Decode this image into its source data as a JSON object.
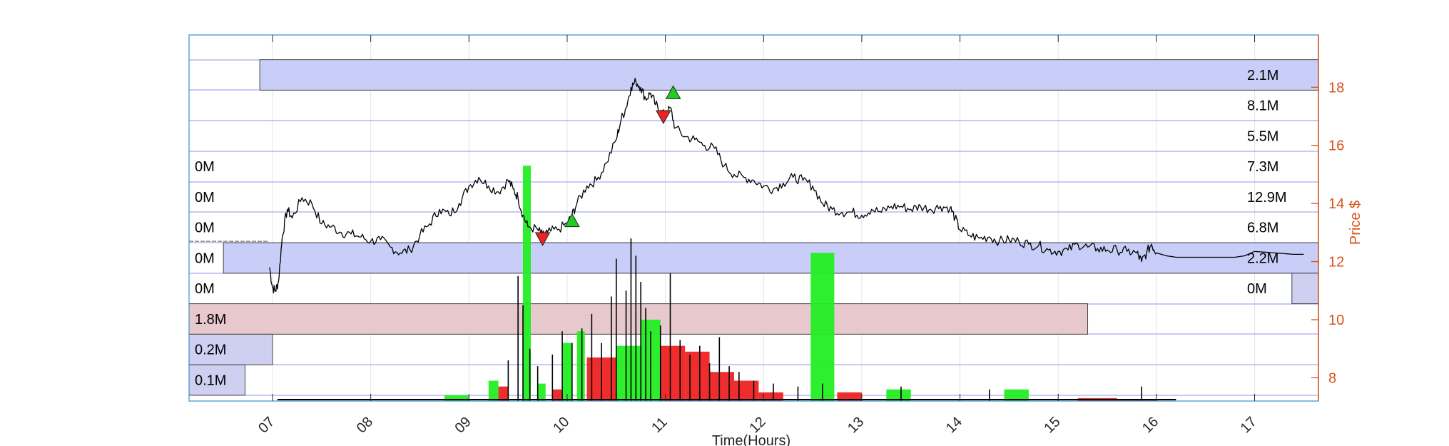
{
  "chart_data": {
    "type": "line",
    "title": "",
    "xlabel": "Time(Hours)",
    "ylabel": "Price $",
    "x_ticks": [
      "07",
      "08",
      "09",
      "10",
      "11",
      "12",
      "13",
      "14",
      "15",
      "16",
      "17"
    ],
    "x_range": [
      6.15,
      17.65
    ],
    "y_ticks": [
      8,
      10,
      12,
      14,
      16,
      18
    ],
    "ylim": [
      7.2,
      19.8
    ],
    "grid": true,
    "colors": {
      "price_line": "#000000",
      "price_axis": "#d95319",
      "profile_blue": "#c8cef8",
      "profile_value_area": "#e6c8cd",
      "profile_small": "#cfcff2",
      "up_volume": "#22ee22",
      "down_volume": "#ee2222",
      "grid_blue": "#8f96f0",
      "buy_marker": "#22cc22",
      "sell_marker": "#ee2222"
    },
    "price_series": [
      [
        6.97,
        11.8
      ],
      [
        7.0,
        11.1
      ],
      [
        7.03,
        11.0
      ],
      [
        7.06,
        11.3
      ],
      [
        7.1,
        12.9
      ],
      [
        7.15,
        13.8
      ],
      [
        7.2,
        13.5
      ],
      [
        7.3,
        14.2
      ],
      [
        7.4,
        14.0
      ],
      [
        7.5,
        13.3
      ],
      [
        7.6,
        13.2
      ],
      [
        7.7,
        13.0
      ],
      [
        7.8,
        12.95
      ],
      [
        7.9,
        12.85
      ],
      [
        8.0,
        12.7
      ],
      [
        8.1,
        12.75
      ],
      [
        8.2,
        12.5
      ],
      [
        8.3,
        12.3
      ],
      [
        8.4,
        12.4
      ],
      [
        8.5,
        12.9
      ],
      [
        8.6,
        13.3
      ],
      [
        8.7,
        13.8
      ],
      [
        8.8,
        13.6
      ],
      [
        8.9,
        14.0
      ],
      [
        9.0,
        14.6
      ],
      [
        9.1,
        14.9
      ],
      [
        9.2,
        14.6
      ],
      [
        9.3,
        14.4
      ],
      [
        9.4,
        14.8
      ],
      [
        9.45,
        14.5
      ],
      [
        9.5,
        14.2
      ],
      [
        9.55,
        13.6
      ],
      [
        9.6,
        13.2
      ],
      [
        9.7,
        13.1
      ],
      [
        9.75,
        12.9
      ],
      [
        9.8,
        13.0
      ],
      [
        9.9,
        13.1
      ],
      [
        10.0,
        13.3
      ],
      [
        10.05,
        13.6
      ],
      [
        10.1,
        14.0
      ],
      [
        10.2,
        14.6
      ],
      [
        10.3,
        14.8
      ],
      [
        10.4,
        15.4
      ],
      [
        10.5,
        16.2
      ],
      [
        10.55,
        16.9
      ],
      [
        10.6,
        17.3
      ],
      [
        10.65,
        18.0
      ],
      [
        10.7,
        18.2
      ],
      [
        10.75,
        18.0
      ],
      [
        10.8,
        17.6
      ],
      [
        10.85,
        17.8
      ],
      [
        10.9,
        17.4
      ],
      [
        10.95,
        17.2
      ],
      [
        11.0,
        17.0
      ],
      [
        11.05,
        17.3
      ],
      [
        11.1,
        16.6
      ],
      [
        11.2,
        16.3
      ],
      [
        11.3,
        16.2
      ],
      [
        11.4,
        16.0
      ],
      [
        11.5,
        15.9
      ],
      [
        11.6,
        15.3
      ],
      [
        11.7,
        15.0
      ],
      [
        11.8,
        14.9
      ],
      [
        11.9,
        14.8
      ],
      [
        12.0,
        14.6
      ],
      [
        12.1,
        14.5
      ],
      [
        12.2,
        14.7
      ],
      [
        12.3,
        14.9
      ],
      [
        12.4,
        14.8
      ],
      [
        12.5,
        14.6
      ],
      [
        12.6,
        14.0
      ],
      [
        12.7,
        13.8
      ],
      [
        12.8,
        13.7
      ],
      [
        12.9,
        13.7
      ],
      [
        13.0,
        13.6
      ],
      [
        13.1,
        13.8
      ],
      [
        13.2,
        13.7
      ],
      [
        13.3,
        13.9
      ],
      [
        13.4,
        13.9
      ],
      [
        13.5,
        13.8
      ],
      [
        13.6,
        13.9
      ],
      [
        13.7,
        13.8
      ],
      [
        13.8,
        13.9
      ],
      [
        13.9,
        13.85
      ],
      [
        13.95,
        13.5
      ],
      [
        14.0,
        13.1
      ],
      [
        14.1,
        12.9
      ],
      [
        14.2,
        12.8
      ],
      [
        14.3,
        12.85
      ],
      [
        14.4,
        12.7
      ],
      [
        14.5,
        12.75
      ],
      [
        14.6,
        12.7
      ],
      [
        14.7,
        12.6
      ],
      [
        14.8,
        12.55
      ],
      [
        14.9,
        12.4
      ],
      [
        15.0,
        12.35
      ],
      [
        15.1,
        12.4
      ],
      [
        15.2,
        12.6
      ],
      [
        15.3,
        12.5
      ],
      [
        15.4,
        12.45
      ],
      [
        15.5,
        12.4
      ],
      [
        15.6,
        12.4
      ],
      [
        15.7,
        12.35
      ],
      [
        15.8,
        12.3
      ],
      [
        15.85,
        12.0
      ],
      [
        15.9,
        12.3
      ],
      [
        15.95,
        12.6
      ],
      [
        16.0,
        12.3
      ],
      [
        16.1,
        12.2
      ],
      [
        16.2,
        12.15
      ],
      [
        16.4,
        12.15
      ],
      [
        16.6,
        12.15
      ],
      [
        16.8,
        12.15
      ],
      [
        16.9,
        12.2
      ],
      [
        17.0,
        12.35
      ],
      [
        17.2,
        12.3
      ],
      [
        17.4,
        12.25
      ],
      [
        17.5,
        12.25
      ]
    ],
    "pre_market": [
      6.15,
      6.95,
      12.7
    ],
    "volume_profile_left": [
      {
        "price_bin": [
          14.75,
          15.8
        ],
        "label": "0M",
        "volume": 0.0
      },
      {
        "price_bin": [
          13.7,
          14.75
        ],
        "label": "0M",
        "volume": 0.0
      },
      {
        "price_bin": [
          12.65,
          13.7
        ],
        "label": "0M",
        "volume": 0.0
      },
      {
        "price_bin": [
          11.6,
          12.65
        ],
        "label": "0M",
        "volume": 0.0
      },
      {
        "price_bin": [
          10.55,
          11.6
        ],
        "label": "0M",
        "volume": 0.0
      },
      {
        "price_bin": [
          9.5,
          10.55
        ],
        "label": "1.8M",
        "volume": 1.8
      },
      {
        "price_bin": [
          8.45,
          9.5
        ],
        "label": "0.2M",
        "volume": 0.2
      },
      {
        "price_bin": [
          7.4,
          8.45
        ],
        "label": "0.1M",
        "volume": 0.1
      }
    ],
    "volume_profile_right": [
      {
        "price_bin": [
          17.9,
          18.95
        ],
        "label": "2.1M",
        "volume": 2.1
      },
      {
        "price_bin": [
          16.85,
          17.9
        ],
        "label": "8.1M",
        "volume": 8.1
      },
      {
        "price_bin": [
          15.8,
          16.85
        ],
        "label": "5.5M",
        "volume": 5.5
      },
      {
        "price_bin": [
          14.75,
          15.8
        ],
        "label": "7.3M",
        "volume": 7.3
      },
      {
        "price_bin": [
          13.7,
          14.75
        ],
        "label": "12.9M",
        "volume": 12.9
      },
      {
        "price_bin": [
          12.65,
          13.7
        ],
        "label": "6.8M",
        "volume": 6.8
      },
      {
        "price_bin": [
          11.6,
          12.65
        ],
        "label": "2.2M",
        "volume": 2.2
      },
      {
        "price_bin": [
          10.55,
          11.6
        ],
        "label": "0M",
        "volume": 0.0
      }
    ],
    "highlight_bins": [
      {
        "price_bin": [
          17.9,
          18.95
        ],
        "x_from": 6.87,
        "x_to": 17.65
      },
      {
        "price_bin": [
          11.6,
          12.65
        ],
        "x_from": 6.5,
        "x_to": 17.65
      }
    ],
    "value_area_bin": {
      "price_bin": [
        9.5,
        10.55
      ],
      "x_from": 6.15,
      "x_to": 15.3
    },
    "small_blocks": [
      {
        "price_bin": [
          8.45,
          9.5
        ],
        "x_from": 6.15,
        "x_to": 7.0
      },
      {
        "price_bin": [
          7.4,
          8.45
        ],
        "x_from": 6.15,
        "x_to": 6.72
      },
      {
        "price_bin": [
          10.55,
          11.6
        ],
        "x_from": 17.38,
        "x_to": 17.65
      }
    ],
    "volume_bars_15min": [
      {
        "t0": 8.75,
        "t1": 9.0,
        "dir": "up",
        "top": 7.4
      },
      {
        "t0": 9.2,
        "t1": 9.3,
        "dir": "up",
        "top": 7.9
      },
      {
        "t0": 9.3,
        "t1": 9.4,
        "dir": "down",
        "top": 7.7
      },
      {
        "t0": 9.55,
        "t1": 9.63,
        "dir": "up",
        "top": 15.3
      },
      {
        "t0": 9.7,
        "t1": 9.78,
        "dir": "up",
        "top": 7.8
      },
      {
        "t0": 9.85,
        "t1": 9.95,
        "dir": "down",
        "top": 7.6
      },
      {
        "t0": 9.95,
        "t1": 10.05,
        "dir": "up",
        "top": 9.2
      },
      {
        "t0": 10.1,
        "t1": 10.18,
        "dir": "up",
        "top": 9.6
      },
      {
        "t0": 10.2,
        "t1": 10.5,
        "dir": "down",
        "top": 8.7
      },
      {
        "t0": 10.5,
        "t1": 10.75,
        "dir": "up",
        "top": 9.1
      },
      {
        "t0": 10.75,
        "t1": 10.95,
        "dir": "up",
        "top": 10.0
      },
      {
        "t0": 10.95,
        "t1": 11.2,
        "dir": "down",
        "top": 9.1
      },
      {
        "t0": 11.2,
        "t1": 11.45,
        "dir": "down",
        "top": 8.9
      },
      {
        "t0": 11.45,
        "t1": 11.7,
        "dir": "down",
        "top": 8.2
      },
      {
        "t0": 11.7,
        "t1": 11.95,
        "dir": "down",
        "top": 7.9
      },
      {
        "t0": 11.95,
        "t1": 12.2,
        "dir": "down",
        "top": 7.5
      },
      {
        "t0": 12.48,
        "t1": 12.72,
        "dir": "up",
        "top": 12.3
      },
      {
        "t0": 12.75,
        "t1": 13.0,
        "dir": "down",
        "top": 7.5
      },
      {
        "t0": 13.25,
        "t1": 13.5,
        "dir": "up",
        "top": 7.6
      },
      {
        "t0": 14.45,
        "t1": 14.7,
        "dir": "up",
        "top": 7.6
      },
      {
        "t0": 15.2,
        "t1": 15.6,
        "dir": "down",
        "top": 7.3
      },
      {
        "t0": 15.6,
        "t1": 16.0,
        "dir": "down",
        "top": 7.25
      }
    ],
    "volume_spikes": [
      [
        9.4,
        8.6
      ],
      [
        9.5,
        11.5
      ],
      [
        9.55,
        10.5
      ],
      [
        9.62,
        9.0
      ],
      [
        9.7,
        8.4
      ],
      [
        9.85,
        8.8
      ],
      [
        9.95,
        9.6
      ],
      [
        10.05,
        9.2
      ],
      [
        10.15,
        9.7
      ],
      [
        10.25,
        10.2
      ],
      [
        10.35,
        9.2
      ],
      [
        10.45,
        10.8
      ],
      [
        10.5,
        12.1
      ],
      [
        10.6,
        11.0
      ],
      [
        10.65,
        12.8
      ],
      [
        10.7,
        12.2
      ],
      [
        10.75,
        11.3
      ],
      [
        10.8,
        10.4
      ],
      [
        10.85,
        9.6
      ],
      [
        10.95,
        9.8
      ],
      [
        11.05,
        11.6
      ],
      [
        11.15,
        9.3
      ],
      [
        11.25,
        8.8
      ],
      [
        11.35,
        9.1
      ],
      [
        11.45,
        8.5
      ],
      [
        11.55,
        9.4
      ],
      [
        11.65,
        8.4
      ],
      [
        11.75,
        8.2
      ],
      [
        11.9,
        7.9
      ],
      [
        12.1,
        7.8
      ],
      [
        12.35,
        7.7
      ],
      [
        12.6,
        7.8
      ],
      [
        13.4,
        7.7
      ],
      [
        14.3,
        7.6
      ],
      [
        15.85,
        7.7
      ]
    ],
    "trade_markers": [
      {
        "type": "sell",
        "x": 9.75,
        "y": 12.8
      },
      {
        "type": "buy",
        "x": 10.05,
        "y": 13.4
      },
      {
        "type": "sell",
        "x": 10.98,
        "y": 17.0
      },
      {
        "type": "buy",
        "x": 11.08,
        "y": 17.8
      }
    ]
  }
}
